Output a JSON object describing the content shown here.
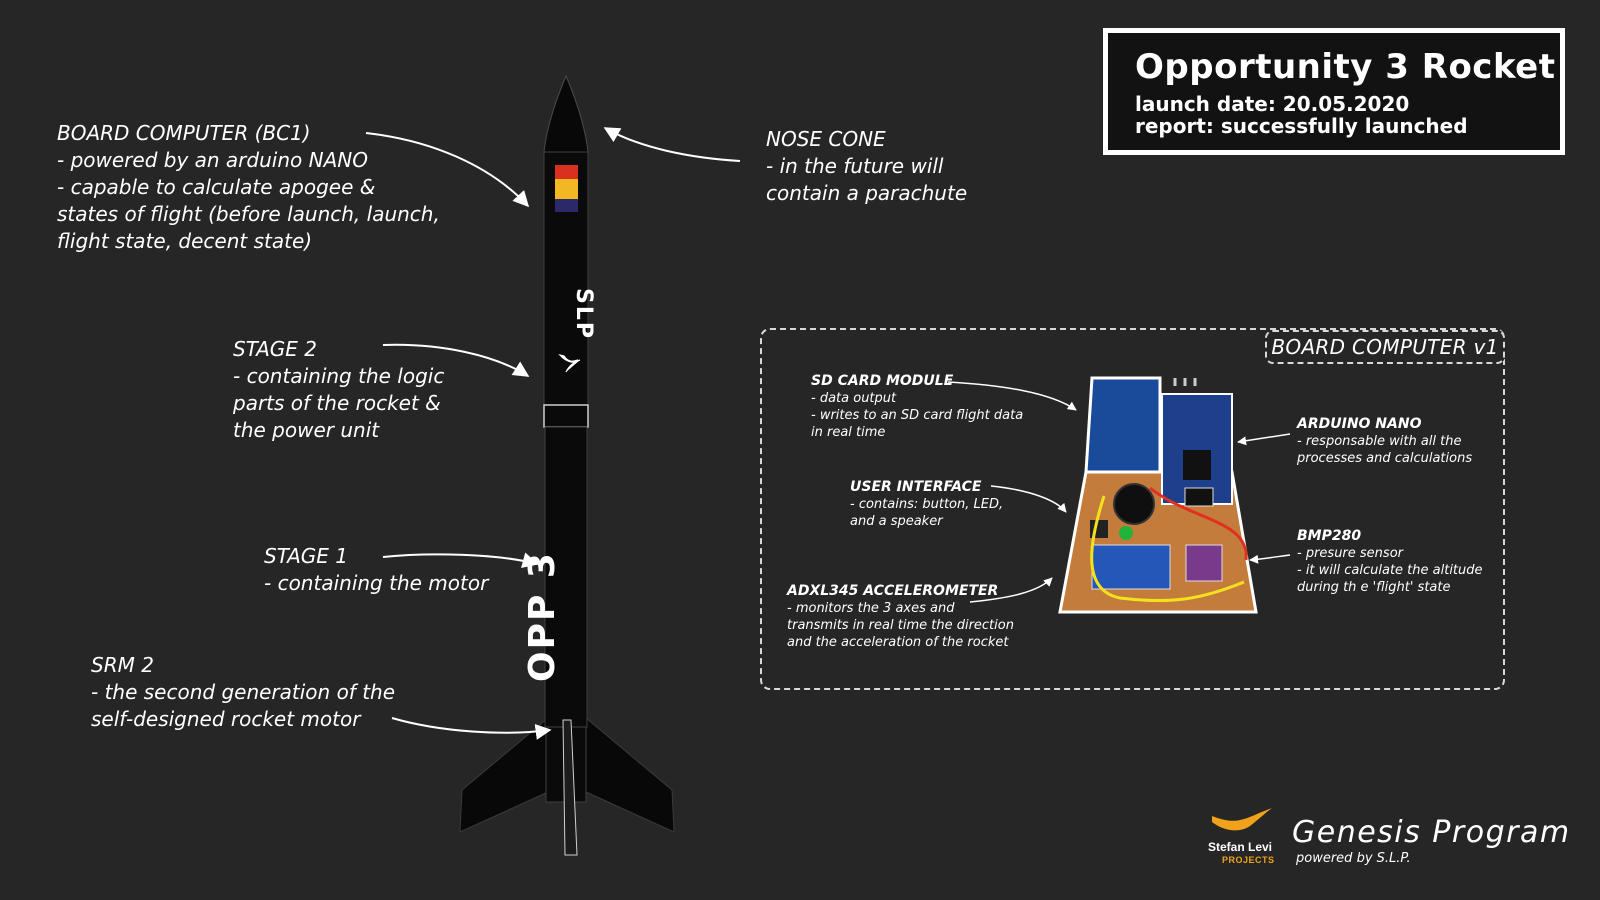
{
  "title": {
    "name": "Opportunity 3 Rocket",
    "launch_date": "launch date: 20.05.2020",
    "report": "report: successfully launched"
  },
  "rocket_labels": {
    "board_computer": {
      "heading": "BOARD COMPUTER (BC1)",
      "lines": [
        "- powered by an arduino NANO",
        "- capable to calculate apogee &",
        "states of flight (before launch, launch,",
        "flight state, decent state)"
      ]
    },
    "nose_cone": {
      "heading": "NOSE CONE",
      "lines": [
        "- in the future will",
        "contain a parachute"
      ]
    },
    "stage2": {
      "heading": "STAGE 2",
      "lines": [
        "- containing the logic",
        "parts of the rocket &",
        "the power unit"
      ]
    },
    "stage1": {
      "heading": "STAGE 1",
      "lines": [
        "- containing the motor"
      ]
    },
    "srm2": {
      "heading": "SRM 2",
      "lines": [
        "- the second generation of the",
        "self-designed rocket motor"
      ]
    }
  },
  "rocket_body": {
    "brand_text": "SLP",
    "name_text": "OPP 3",
    "colors": {
      "red": "#d9301f",
      "yellow": "#f2b824",
      "navy": "#2a2a6a"
    }
  },
  "board_panel": {
    "tag": "BOARD COMPUTER v1",
    "sd_card": {
      "heading": "SD CARD MODULE",
      "lines": [
        "- data output",
        "- writes to an SD card flight data",
        "in real time"
      ]
    },
    "user_interface": {
      "heading": "USER INTERFACE",
      "lines": [
        "- contains: button, LED,",
        "and a speaker"
      ]
    },
    "accelerometer": {
      "heading": "ADXL345 ACCELEROMETER",
      "lines": [
        "- monitors the 3 axes and",
        "transmits in real time the direction",
        "and the acceleration of the rocket"
      ]
    },
    "arduino": {
      "heading": "ARDUINO NANO",
      "lines": [
        "- responsable with all the",
        "processes and calculations"
      ]
    },
    "bmp280": {
      "heading": "BMP280",
      "lines": [
        "- presure sensor",
        "- it will calculate the altitude",
        "during th e 'flight' state"
      ]
    }
  },
  "footer": {
    "program": "Genesis Program",
    "powered_by": "powered by S.L.P.",
    "logo_name": "Stefan Levi",
    "logo_sub": "PROJECTS",
    "logo_color": "#f0a21a"
  }
}
